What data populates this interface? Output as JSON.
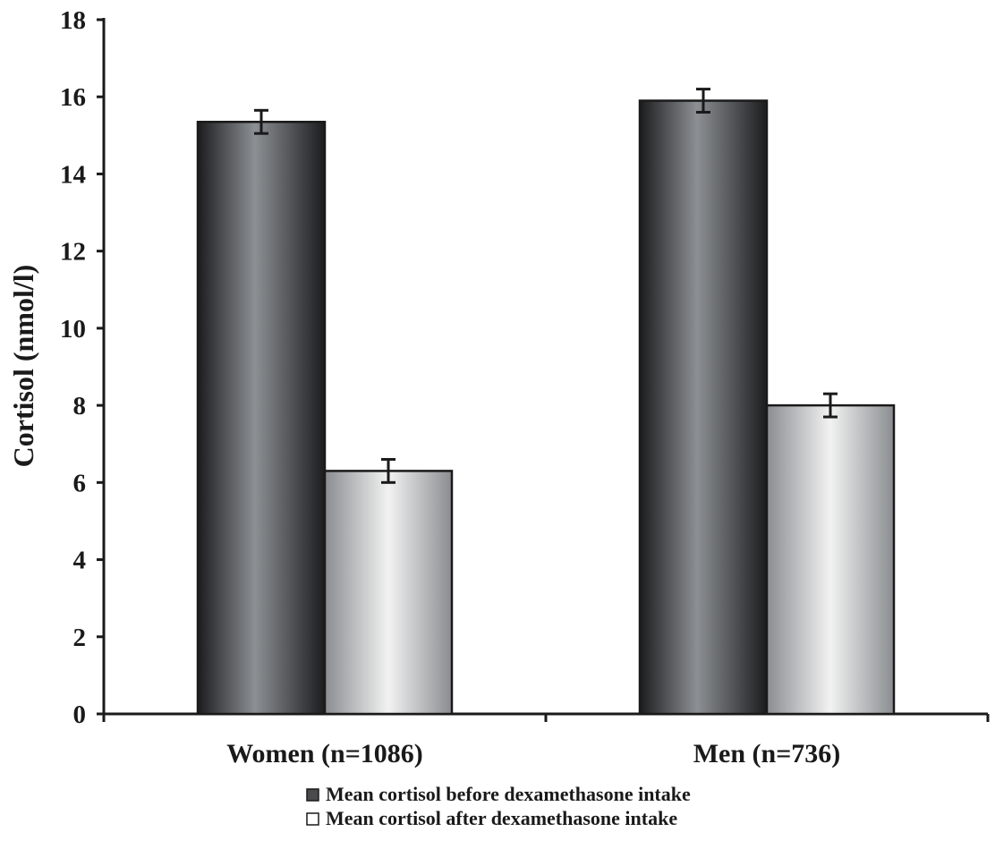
{
  "chart_data": {
    "type": "bar",
    "title": "",
    "xlabel": "",
    "ylabel": "Cortisol (nmol/l)",
    "ylim": [
      0,
      18
    ],
    "yticks": [
      0,
      2,
      4,
      6,
      8,
      10,
      12,
      14,
      16,
      18
    ],
    "grid": false,
    "legend_position": "bottom-center",
    "categories": [
      "Women (n=1086)",
      "Men (n=736)"
    ],
    "series": [
      {
        "name": "Mean cortisol before dexamethasone intake",
        "values": [
          15.35,
          15.9
        ],
        "error": [
          0.3,
          0.3
        ],
        "color": "#3a3a3c"
      },
      {
        "name": "Mean cortisol after dexamethasone intake",
        "values": [
          6.3,
          8.0
        ],
        "error": [
          0.3,
          0.3
        ],
        "color": "#d0d2d4"
      }
    ]
  }
}
